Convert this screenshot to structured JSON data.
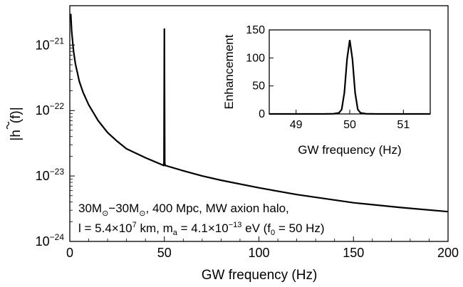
{
  "chart_data": [
    {
      "type": "line",
      "xlabel": "GW frequency (Hz)",
      "ylabel_base": "|h",
      "ylabel_tail": "(f)|",
      "xlim": [
        0,
        200
      ],
      "ylim": [
        1e-24,
        4e-21
      ],
      "yscale": "log",
      "x_ticks": [
        0,
        50,
        100,
        150,
        200
      ],
      "x_tick_labels": [
        "0",
        "50",
        "100",
        "150",
        "200"
      ],
      "y_ticks": [
        {
          "value": 1e-21,
          "base": "10",
          "exp": "−21"
        },
        {
          "value": 1e-22,
          "base": "10",
          "exp": "−22"
        },
        {
          "value": 1e-23,
          "base": "10",
          "exp": "−23"
        },
        {
          "value": 1e-24,
          "base": "10",
          "exp": "−24"
        }
      ],
      "series": [
        {
          "x": [
            0.5,
            1,
            2,
            3,
            4,
            5,
            7,
            10,
            15,
            20,
            25,
            30,
            40,
            49.6,
            49.8,
            50,
            50.2,
            50.4,
            60,
            70,
            80,
            100,
            120,
            150,
            175,
            200
          ],
          "y": [
            3e-21,
            1.6e-21,
            8e-22,
            5.1e-22,
            3.8e-22,
            2.8e-22,
            1.9e-22,
            1.22e-22,
            7e-23,
            4.6e-23,
            3.4e-23,
            2.6e-23,
            1.9e-23,
            1.45e-23,
            1.6e-23,
            1.8e-21,
            1.6e-23,
            1.45e-23,
            1.2e-23,
            1e-23,
            8.6e-24,
            6.6e-24,
            5.2e-24,
            3.9e-24,
            3.3e-24,
            2.85e-24
          ]
        }
      ],
      "annotation": {
        "line1": {
          "a": "30M",
          "sub1": "⊙",
          "b": "−30M",
          "sub2": "⊙",
          "c": ", 400 Mpc, MW axion halo,"
        },
        "line2": {
          "a": "l = 5.4×10",
          "sup1": "7",
          "b": " km, m",
          "sub1": "a",
          "c": " = 4.1×10",
          "sup2": "−13",
          "d": " eV (f",
          "sub2": "0",
          "e": " = 50 Hz)"
        }
      }
    },
    {
      "type": "line",
      "xlabel": "GW frequency (Hz)",
      "ylabel": "Enhancement",
      "xlim": [
        48.5,
        51.5
      ],
      "ylim": [
        0,
        150
      ],
      "x_ticks": [
        49,
        50,
        51
      ],
      "x_tick_labels": [
        "49",
        "50",
        "51"
      ],
      "y_ticks": [
        0,
        50,
        100,
        150
      ],
      "y_tick_labels": [
        "0",
        "50",
        "100",
        "150"
      ],
      "series": [
        {
          "x": [
            48.5,
            49.5,
            49.7,
            49.8,
            49.85,
            49.9,
            49.95,
            50.0,
            50.05,
            50.1,
            50.15,
            50.2,
            50.3,
            50.5,
            51.5
          ],
          "y": [
            0,
            0,
            0.3,
            2,
            8,
            38,
            98,
            132,
            98,
            38,
            8,
            2,
            0.3,
            0,
            0
          ]
        }
      ]
    }
  ]
}
